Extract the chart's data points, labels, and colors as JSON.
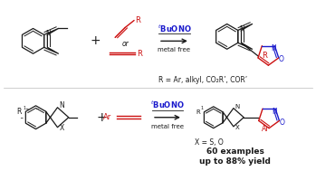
{
  "background_color": "#ffffff",
  "fig_width": 3.49,
  "fig_height": 1.89,
  "dpi": 100,
  "blue": "#1a1acc",
  "red": "#cc1111",
  "black": "#1a1a1a",
  "gray": "#aaaaaa",
  "top": {
    "arrow_top": "tBuONO",
    "arrow_bot": "metal free",
    "r_scope": "R = Ar, alkyl, CO₂R’, COR’"
  },
  "bottom": {
    "arrow_top": "tBuONO",
    "arrow_bot": "metal free",
    "x_scope": "X = S, O",
    "yield1": "60 examples",
    "yield2": "up to 88% yield"
  }
}
